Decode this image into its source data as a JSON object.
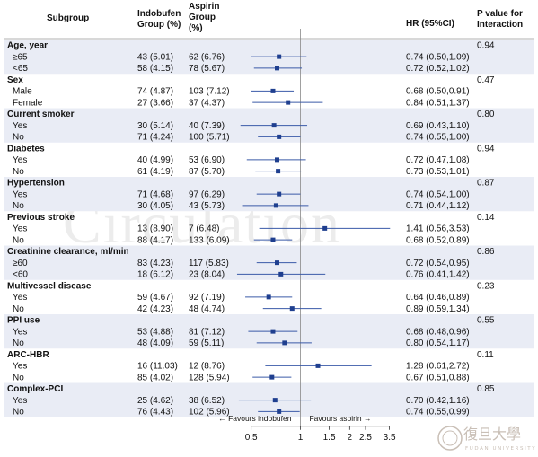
{
  "headers": {
    "subgroup": "Subgroup",
    "indobufen": "Indobufen Group (%)",
    "aspirin": "Aspirin Group (%)",
    "hr": "HR (95%CI)",
    "pvalue": "P value for Interaction"
  },
  "footer": {
    "favours_left": "← Favours indobufen",
    "favours_right": "Favours aspirin →"
  },
  "watermark": "Circulation",
  "logo": {
    "chinese": "復旦大學",
    "english": "FUDAN UNIVERSITY"
  },
  "colors": {
    "band": "#e9ecf5",
    "marker": "#1f3f8f",
    "ci_line": "#3a5aa8",
    "ref_line": "#888888"
  },
  "chart_data": {
    "type": "forest",
    "x_scale": "log",
    "x_ticks": [
      0.5,
      1,
      1.5,
      2,
      2.5,
      3.5
    ],
    "x_range": [
      0.4,
      3.7
    ],
    "reference": 1,
    "groups": [
      {
        "name": "Age, year",
        "p": "0.94",
        "rows": [
          {
            "label": "≥65",
            "indo": "43 (5.01)",
            "asp": "62 (6.76)",
            "hr_text": "0.74 (0.50,1.09)",
            "hr": 0.74,
            "lo": 0.5,
            "hi": 1.09
          },
          {
            "label": "<65",
            "indo": "58 (4.15)",
            "asp": "78 (5.67)",
            "hr_text": "0.72 (0.52,1.02)",
            "hr": 0.72,
            "lo": 0.52,
            "hi": 1.02
          }
        ]
      },
      {
        "name": "Sex",
        "p": "0.47",
        "rows": [
          {
            "label": "Male",
            "indo": "74 (4.87)",
            "asp": "103 (7.12)",
            "hr_text": "0.68 (0.50,0.91)",
            "hr": 0.68,
            "lo": 0.5,
            "hi": 0.91
          },
          {
            "label": "Female",
            "indo": "27 (3.66)",
            "asp": "37 (4.37)",
            "hr_text": "0.84 (0.51,1.37)",
            "hr": 0.84,
            "lo": 0.51,
            "hi": 1.37
          }
        ]
      },
      {
        "name": "Current smoker",
        "p": "0.80",
        "rows": [
          {
            "label": "Yes",
            "indo": "30 (5.14)",
            "asp": "40 (7.39)",
            "hr_text": "0.69 (0.43,1.10)",
            "hr": 0.69,
            "lo": 0.43,
            "hi": 1.1
          },
          {
            "label": "No",
            "indo": "71 (4.24)",
            "asp": "100 (5.71)",
            "hr_text": "0.74 (0.55,1.00)",
            "hr": 0.74,
            "lo": 0.55,
            "hi": 1.0
          }
        ]
      },
      {
        "name": "Diabetes",
        "p": "0.94",
        "rows": [
          {
            "label": "Yes",
            "indo": "40 (4.99)",
            "asp": "53 (6.90)",
            "hr_text": "0.72 (0.47,1.08)",
            "hr": 0.72,
            "lo": 0.47,
            "hi": 1.08
          },
          {
            "label": "No",
            "indo": "61 (4.19)",
            "asp": "87 (5.70)",
            "hr_text": "0.73 (0.53,1.01)",
            "hr": 0.73,
            "lo": 0.53,
            "hi": 1.01
          }
        ]
      },
      {
        "name": "Hypertension",
        "p": "0.87",
        "rows": [
          {
            "label": "Yes",
            "indo": "71 (4.68)",
            "asp": "97 (6.29)",
            "hr_text": "0.74 (0.54,1.00)",
            "hr": 0.74,
            "lo": 0.54,
            "hi": 1.0
          },
          {
            "label": "No",
            "indo": "30 (4.05)",
            "asp": "43 (5.73)",
            "hr_text": "0.71 (0.44,1.12)",
            "hr": 0.71,
            "lo": 0.44,
            "hi": 1.12
          }
        ]
      },
      {
        "name": "Previous stroke",
        "p": "0.14",
        "rows": [
          {
            "label": "Yes",
            "indo": "13 (8.90)",
            "asp": "7 (6.48)",
            "hr_text": "1.41 (0.56,3.53)",
            "hr": 1.41,
            "lo": 0.56,
            "hi": 3.53
          },
          {
            "label": "No",
            "indo": "88 (4.17)",
            "asp": "133 (6.09)",
            "hr_text": "0.68 (0.52,0.89)",
            "hr": 0.68,
            "lo": 0.52,
            "hi": 0.89
          }
        ]
      },
      {
        "name": "Creatinine clearance, ml/min",
        "p": "0.86",
        "rows": [
          {
            "label": "≥60",
            "indo": "83 (4.23)",
            "asp": "117 (5.83)",
            "hr_text": "0.72 (0.54,0.95)",
            "hr": 0.72,
            "lo": 0.54,
            "hi": 0.95
          },
          {
            "label": "<60",
            "indo": "18 (6.12)",
            "asp": "23 (8.04)",
            "hr_text": "0.76 (0.41,1.42)",
            "hr": 0.76,
            "lo": 0.41,
            "hi": 1.42
          }
        ]
      },
      {
        "name": "Multivessel disease",
        "p": "0.23",
        "rows": [
          {
            "label": "Yes",
            "indo": "59 (4.67)",
            "asp": "92 (7.19)",
            "hr_text": "0.64 (0.46,0.89)",
            "hr": 0.64,
            "lo": 0.46,
            "hi": 0.89
          },
          {
            "label": "No",
            "indo": "42 (4.23)",
            "asp": "48 (4.74)",
            "hr_text": "0.89 (0.59,1.34)",
            "hr": 0.89,
            "lo": 0.59,
            "hi": 1.34
          }
        ]
      },
      {
        "name": "PPI use",
        "p": "0.55",
        "rows": [
          {
            "label": "Yes",
            "indo": "53 (4.88)",
            "asp": "81 (7.12)",
            "hr_text": "0.68 (0.48,0.96)",
            "hr": 0.68,
            "lo": 0.48,
            "hi": 0.96
          },
          {
            "label": "No",
            "indo": "48 (4.09)",
            "asp": "59 (5.11)",
            "hr_text": "0.80 (0.54,1.17)",
            "hr": 0.8,
            "lo": 0.54,
            "hi": 1.17
          }
        ]
      },
      {
        "name": "ARC-HBR",
        "p": "0.11",
        "rows": [
          {
            "label": "Yes",
            "indo": "16 (11.03)",
            "asp": "12 (8.76)",
            "hr_text": "1.28 (0.61,2.72)",
            "hr": 1.28,
            "lo": 0.61,
            "hi": 2.72
          },
          {
            "label": "No",
            "indo": "85 (4.02)",
            "asp": "128 (5.94)",
            "hr_text": "0.67 (0.51,0.88)",
            "hr": 0.67,
            "lo": 0.51,
            "hi": 0.88
          }
        ]
      },
      {
        "name": "Complex-PCI",
        "p": "0.85",
        "rows": [
          {
            "label": "Yes",
            "indo": "25 (4.62)",
            "asp": "38 (6.52)",
            "hr_text": "0.70 (0.42,1.16)",
            "hr": 0.7,
            "lo": 0.42,
            "hi": 1.16
          },
          {
            "label": "No",
            "indo": "76 (4.43)",
            "asp": "102 (5.96)",
            "hr_text": "0.74 (0.55,0.99)",
            "hr": 0.74,
            "lo": 0.55,
            "hi": 0.99
          }
        ]
      }
    ]
  }
}
